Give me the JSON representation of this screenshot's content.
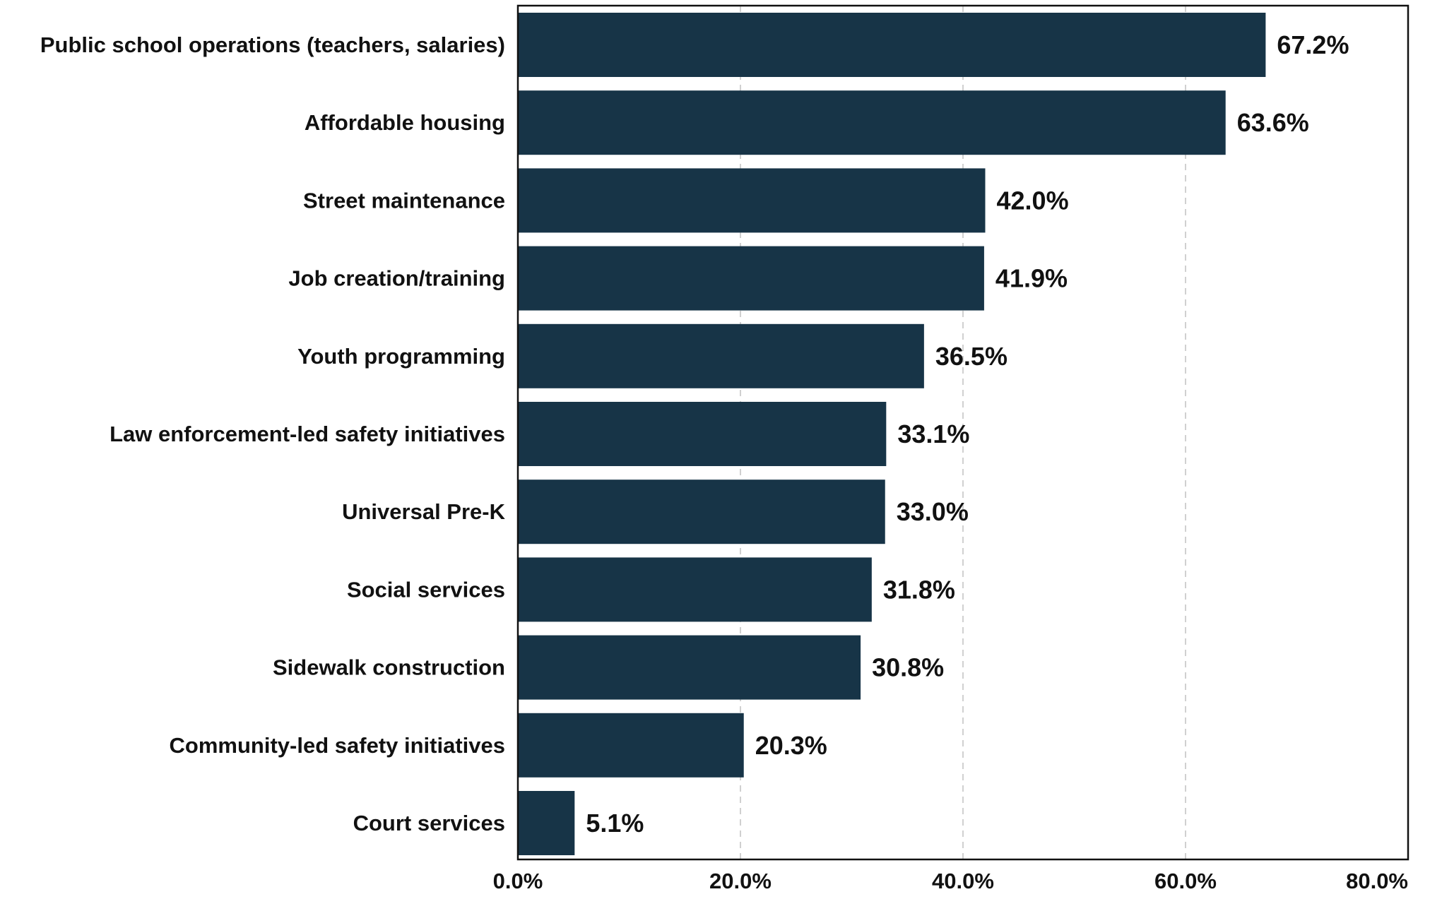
{
  "chart_data": {
    "type": "bar",
    "orientation": "horizontal",
    "categories": [
      "Public school operations (teachers, salaries)",
      "Affordable housing",
      "Street maintenance",
      "Job creation/training",
      "Youth programming",
      "Law enforcement-led safety initiatives",
      "Universal Pre-K",
      "Social services",
      "Sidewalk construction",
      "Community-led safety initiatives",
      "Court services"
    ],
    "values": [
      67.2,
      63.6,
      42.0,
      41.9,
      36.5,
      33.1,
      33.0,
      31.8,
      30.8,
      20.3,
      5.1
    ],
    "value_labels": [
      "67.2%",
      "63.6%",
      "42.0%",
      "41.9%",
      "36.5%",
      "33.1%",
      "33.0%",
      "31.8%",
      "30.8%",
      "20.3%",
      "5.1%"
    ],
    "x_ticks": [
      0,
      20,
      40,
      60,
      80
    ],
    "x_tick_labels": [
      "0.0%",
      "20.0%",
      "40.0%",
      "60.0%",
      "80.0%"
    ],
    "xlim": [
      0,
      80
    ],
    "title": "",
    "xlabel": "",
    "ylabel": "",
    "grid": "vertical dashed",
    "legend": "none",
    "bar_color": "#173447",
    "grid_color": "#d0d0d0",
    "frame_color": "#111111"
  }
}
